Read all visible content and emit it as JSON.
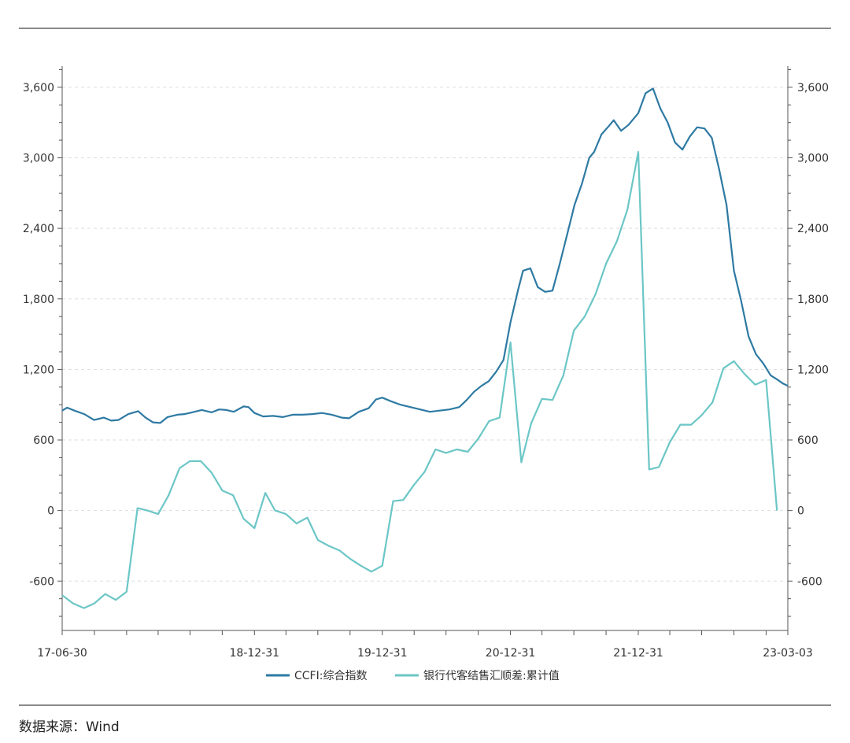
{
  "source_text": "数据来源：Wind",
  "colors": {
    "ccfi": "#2e7aa3",
    "fx": "#6cc6c6",
    "grid": "#dddddd",
    "axis": "#555555"
  },
  "chart_data": {
    "type": "line",
    "title": "",
    "xlabel": "",
    "ylabel": "",
    "x_range": [
      "2017-06-30",
      "2023-03-03"
    ],
    "x_tick_labels": [
      {
        "date": "2017-06-30",
        "label": "17-06-30"
      },
      {
        "date": "2018-12-31",
        "label": "18-12-31"
      },
      {
        "date": "2019-12-31",
        "label": "19-12-31"
      },
      {
        "date": "2020-12-31",
        "label": "20-12-31"
      },
      {
        "date": "2021-12-31",
        "label": "21-12-31"
      },
      {
        "date": "2023-03-03",
        "label": "23-03-03"
      }
    ],
    "y_left": {
      "min": -1020,
      "max": 3780,
      "ticks": [
        -600,
        0,
        600,
        1200,
        1800,
        2400,
        3000,
        3600
      ],
      "tick_labels": [
        "-600",
        "0",
        "600",
        "1,200",
        "1,800",
        "2,400",
        "3,000",
        "3,600"
      ]
    },
    "y_right": {
      "min": -1020,
      "max": 3780,
      "ticks": [
        -600,
        0,
        600,
        1200,
        1800,
        2400,
        3000,
        3600
      ],
      "tick_labels": [
        "-600",
        "0",
        "600",
        "1,200",
        "1,800",
        "2,400",
        "3,000",
        "3,600"
      ]
    },
    "grid": "horizontal dashed",
    "legend_position": "bottom-center",
    "series": [
      {
        "name": "CCFI:综合指数",
        "axis": "left",
        "points": [
          [
            "2017-06-30",
            850
          ],
          [
            "2017-07-14",
            875
          ],
          [
            "2017-08-04",
            850
          ],
          [
            "2017-09-01",
            820
          ],
          [
            "2017-09-29",
            770
          ],
          [
            "2017-10-27",
            790
          ],
          [
            "2017-11-17",
            765
          ],
          [
            "2017-12-08",
            770
          ],
          [
            "2018-01-05",
            820
          ],
          [
            "2018-02-02",
            845
          ],
          [
            "2018-02-23",
            790
          ],
          [
            "2018-03-16",
            750
          ],
          [
            "2018-04-06",
            745
          ],
          [
            "2018-04-27",
            795
          ],
          [
            "2018-05-25",
            815
          ],
          [
            "2018-06-15",
            820
          ],
          [
            "2018-07-06",
            835
          ],
          [
            "2018-08-03",
            855
          ],
          [
            "2018-08-31",
            835
          ],
          [
            "2018-09-21",
            860
          ],
          [
            "2018-10-12",
            855
          ],
          [
            "2018-11-02",
            840
          ],
          [
            "2018-11-30",
            885
          ],
          [
            "2018-12-14",
            880
          ],
          [
            "2018-12-31",
            830
          ],
          [
            "2019-01-25",
            800
          ],
          [
            "2019-02-22",
            805
          ],
          [
            "2019-03-22",
            795
          ],
          [
            "2019-04-19",
            815
          ],
          [
            "2019-05-17",
            815
          ],
          [
            "2019-06-14",
            820
          ],
          [
            "2019-07-12",
            830
          ],
          [
            "2019-08-09",
            815
          ],
          [
            "2019-09-06",
            790
          ],
          [
            "2019-09-27",
            785
          ],
          [
            "2019-10-25",
            840
          ],
          [
            "2019-11-22",
            870
          ],
          [
            "2019-12-13",
            945
          ],
          [
            "2019-12-31",
            960
          ],
          [
            "2020-01-24",
            930
          ],
          [
            "2020-02-21",
            900
          ],
          [
            "2020-03-20",
            880
          ],
          [
            "2020-04-17",
            860
          ],
          [
            "2020-05-15",
            840
          ],
          [
            "2020-06-12",
            850
          ],
          [
            "2020-07-10",
            860
          ],
          [
            "2020-08-07",
            880
          ],
          [
            "2020-08-28",
            940
          ],
          [
            "2020-09-18",
            1010
          ],
          [
            "2020-10-09",
            1060
          ],
          [
            "2020-10-30",
            1100
          ],
          [
            "2020-11-20",
            1180
          ],
          [
            "2020-12-11",
            1280
          ],
          [
            "2020-12-31",
            1600
          ],
          [
            "2021-01-22",
            1880
          ],
          [
            "2021-02-05",
            2040
          ],
          [
            "2021-02-26",
            2060
          ],
          [
            "2021-03-19",
            1900
          ],
          [
            "2021-04-09",
            1860
          ],
          [
            "2021-04-30",
            1870
          ],
          [
            "2021-05-21",
            2100
          ],
          [
            "2021-06-11",
            2350
          ],
          [
            "2021-07-02",
            2600
          ],
          [
            "2021-07-23",
            2780
          ],
          [
            "2021-08-13",
            3000
          ],
          [
            "2021-08-27",
            3050
          ],
          [
            "2021-09-17",
            3200
          ],
          [
            "2021-10-08",
            3270
          ],
          [
            "2021-10-22",
            3320
          ],
          [
            "2021-11-12",
            3230
          ],
          [
            "2021-12-03",
            3280
          ],
          [
            "2021-12-31",
            3380
          ],
          [
            "2022-01-21",
            3550
          ],
          [
            "2022-02-11",
            3590
          ],
          [
            "2022-03-04",
            3420
          ],
          [
            "2022-03-25",
            3300
          ],
          [
            "2022-04-15",
            3130
          ],
          [
            "2022-05-06",
            3070
          ],
          [
            "2022-05-27",
            3180
          ],
          [
            "2022-06-17",
            3260
          ],
          [
            "2022-07-08",
            3250
          ],
          [
            "2022-07-29",
            3170
          ],
          [
            "2022-08-19",
            2900
          ],
          [
            "2022-09-09",
            2600
          ],
          [
            "2022-09-30",
            2040
          ],
          [
            "2022-10-21",
            1780
          ],
          [
            "2022-11-11",
            1480
          ],
          [
            "2022-12-02",
            1330
          ],
          [
            "2022-12-23",
            1250
          ],
          [
            "2023-01-13",
            1150
          ],
          [
            "2023-02-03",
            1110
          ],
          [
            "2023-02-17",
            1080
          ],
          [
            "2023-03-03",
            1060
          ]
        ]
      },
      {
        "name": "银行代客结售汇顺差:累计值",
        "axis": "right",
        "points": [
          [
            "2017-06-30",
            -720
          ],
          [
            "2017-07-31",
            -790
          ],
          [
            "2017-08-31",
            -830
          ],
          [
            "2017-09-30",
            -790
          ],
          [
            "2017-10-31",
            -710
          ],
          [
            "2017-11-30",
            -760
          ],
          [
            "2017-12-31",
            -690
          ],
          [
            "2018-01-31",
            20
          ],
          [
            "2018-02-28",
            0
          ],
          [
            "2018-03-31",
            -30
          ],
          [
            "2018-04-30",
            130
          ],
          [
            "2018-05-31",
            360
          ],
          [
            "2018-06-30",
            420
          ],
          [
            "2018-07-31",
            420
          ],
          [
            "2018-08-31",
            320
          ],
          [
            "2018-09-30",
            170
          ],
          [
            "2018-10-31",
            130
          ],
          [
            "2018-11-30",
            -70
          ],
          [
            "2018-12-31",
            -150
          ],
          [
            "2019-01-31",
            150
          ],
          [
            "2019-02-28",
            0
          ],
          [
            "2019-03-31",
            -30
          ],
          [
            "2019-04-30",
            -110
          ],
          [
            "2019-05-31",
            -60
          ],
          [
            "2019-06-30",
            -250
          ],
          [
            "2019-07-31",
            -300
          ],
          [
            "2019-08-31",
            -340
          ],
          [
            "2019-09-30",
            -410
          ],
          [
            "2019-10-31",
            -470
          ],
          [
            "2019-11-30",
            -520
          ],
          [
            "2019-12-31",
            -470
          ],
          [
            "2020-01-31",
            80
          ],
          [
            "2020-02-29",
            90
          ],
          [
            "2020-03-31",
            220
          ],
          [
            "2020-04-30",
            330
          ],
          [
            "2020-05-31",
            520
          ],
          [
            "2020-06-30",
            490
          ],
          [
            "2020-07-31",
            520
          ],
          [
            "2020-08-31",
            500
          ],
          [
            "2020-09-30",
            610
          ],
          [
            "2020-10-31",
            760
          ],
          [
            "2020-11-30",
            790
          ],
          [
            "2020-12-31",
            1430
          ],
          [
            "2021-01-31",
            410
          ],
          [
            "2021-02-28",
            740
          ],
          [
            "2021-03-31",
            950
          ],
          [
            "2021-04-30",
            940
          ],
          [
            "2021-05-31",
            1150
          ],
          [
            "2021-06-30",
            1530
          ],
          [
            "2021-07-31",
            1650
          ],
          [
            "2021-08-31",
            1840
          ],
          [
            "2021-09-30",
            2100
          ],
          [
            "2021-10-31",
            2290
          ],
          [
            "2021-11-30",
            2560
          ],
          [
            "2021-12-31",
            3050
          ],
          [
            "2022-01-31",
            350
          ],
          [
            "2022-02-28",
            370
          ],
          [
            "2022-03-31",
            580
          ],
          [
            "2022-04-30",
            730
          ],
          [
            "2022-05-31",
            730
          ],
          [
            "2022-06-30",
            810
          ],
          [
            "2022-07-31",
            920
          ],
          [
            "2022-08-31",
            1210
          ],
          [
            "2022-09-30",
            1270
          ],
          [
            "2022-10-31",
            1160
          ],
          [
            "2022-11-30",
            1070
          ],
          [
            "2022-12-31",
            1110
          ],
          [
            "2023-01-31",
            0
          ]
        ]
      }
    ]
  }
}
